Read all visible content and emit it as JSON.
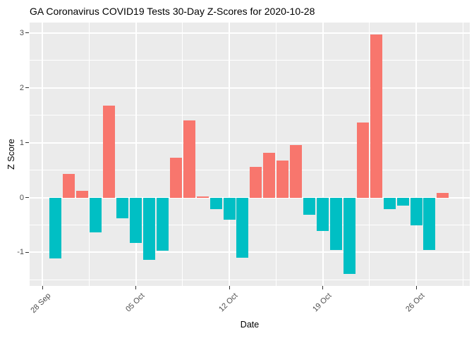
{
  "title": "GA Coronavirus COVID19 Tests 30-Day Z-Scores for 2020-10-28",
  "chart_data": {
    "type": "bar",
    "title": "GA Coronavirus COVID19 Tests 30-Day Z-Scores for 2020-10-28",
    "xlabel": "Date",
    "ylabel": "Z Score",
    "x": [
      "2020-09-29",
      "2020-09-30",
      "2020-10-01",
      "2020-10-02",
      "2020-10-03",
      "2020-10-04",
      "2020-10-05",
      "2020-10-06",
      "2020-10-07",
      "2020-10-08",
      "2020-10-09",
      "2020-10-10",
      "2020-10-11",
      "2020-10-12",
      "2020-10-13",
      "2020-10-14",
      "2020-10-15",
      "2020-10-16",
      "2020-10-17",
      "2020-10-18",
      "2020-10-19",
      "2020-10-20",
      "2020-10-21",
      "2020-10-22",
      "2020-10-23",
      "2020-10-24",
      "2020-10-25",
      "2020-10-26",
      "2020-10-27",
      "2020-10-28"
    ],
    "values": [
      -1.11,
      0.43,
      0.12,
      -0.63,
      1.68,
      -0.38,
      -0.83,
      -1.14,
      -0.97,
      0.73,
      1.41,
      0.02,
      -0.21,
      -0.41,
      -1.1,
      0.56,
      0.82,
      0.67,
      0.96,
      -0.31,
      -0.61,
      -0.95,
      -1.39,
      1.37,
      2.97,
      -0.21,
      -0.15,
      -0.51,
      -0.95,
      0.08
    ],
    "x_tick_labels": [
      "28 Sep",
      "05 Oct",
      "12 Oct",
      "19 Oct",
      "26 Oct"
    ],
    "x_tick_days": [
      0,
      7,
      14,
      21,
      28
    ],
    "x_minor_days": [
      3.5,
      10.5,
      17.5,
      24.5,
      31.5
    ],
    "y_ticks": [
      3,
      2,
      1,
      0,
      -1
    ],
    "y_minor_ticks": [
      2.5,
      1.5,
      0.5,
      -0.5,
      -1.5
    ],
    "ylim": [
      -1.61,
      3.19
    ],
    "grid": true,
    "legend": "none",
    "colors": {
      "positive_bar": "#F8766D",
      "negative_bar": "#00BFC4",
      "panel_background": "#EBEBEB",
      "gridline": "#FFFFFF",
      "tick_label": "#4D4D4D",
      "axis_text": "#000000",
      "tick_mark": "#333333"
    }
  }
}
